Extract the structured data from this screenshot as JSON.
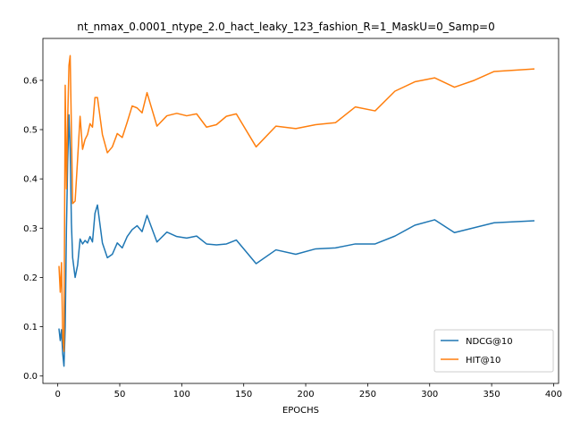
{
  "chart_data": {
    "type": "line",
    "title": "nt_nmax_0.0001_ntype_2.0_hact_leaky_123_fashion_R=1_MaskU=0_Samp=0",
    "xlabel": "EPOCHS",
    "ylabel": "",
    "xlim": [
      -12,
      404
    ],
    "ylim": [
      -0.015,
      0.685
    ],
    "xticks": [
      0,
      50,
      100,
      150,
      200,
      250,
      300,
      350,
      400
    ],
    "yticks": [
      0.0,
      0.1,
      0.2,
      0.3,
      0.4,
      0.5,
      0.6
    ],
    "legend_position": "lower right",
    "series": [
      {
        "name": "NDCG@10",
        "color": "#1f77b4",
        "x": [
          1,
          2,
          3,
          4,
          5,
          6,
          7,
          8,
          9,
          10,
          11,
          12,
          14,
          16,
          18,
          20,
          22,
          24,
          26,
          28,
          30,
          32,
          36,
          40,
          44,
          48,
          52,
          56,
          60,
          64,
          68,
          72,
          80,
          88,
          96,
          104,
          112,
          120,
          128,
          136,
          144,
          160,
          176,
          192,
          208,
          224,
          240,
          256,
          272,
          288,
          304,
          320,
          336,
          352,
          384
        ],
        "y": [
          0.095,
          0.072,
          0.094,
          0.045,
          0.02,
          0.1,
          0.3,
          0.435,
          0.53,
          0.46,
          0.31,
          0.24,
          0.2,
          0.225,
          0.278,
          0.268,
          0.275,
          0.27,
          0.283,
          0.272,
          0.33,
          0.347,
          0.27,
          0.24,
          0.247,
          0.27,
          0.26,
          0.283,
          0.297,
          0.305,
          0.293,
          0.326,
          0.272,
          0.292,
          0.283,
          0.28,
          0.284,
          0.268,
          0.266,
          0.268,
          0.276,
          0.228,
          0.256,
          0.247,
          0.258,
          0.26,
          0.268,
          0.268,
          0.284,
          0.306,
          0.317,
          0.291,
          0.301,
          0.311,
          0.315
        ]
      },
      {
        "name": "HIT@10",
        "color": "#ff7f0e",
        "x": [
          1,
          2,
          3,
          4,
          5,
          6,
          7,
          8,
          9,
          10,
          11,
          12,
          14,
          16,
          18,
          20,
          22,
          24,
          26,
          28,
          30,
          32,
          36,
          40,
          44,
          48,
          52,
          56,
          60,
          64,
          68,
          72,
          80,
          88,
          96,
          104,
          112,
          120,
          128,
          136,
          144,
          160,
          176,
          192,
          208,
          224,
          240,
          256,
          272,
          288,
          304,
          320,
          336,
          352,
          384
        ],
        "y": [
          0.222,
          0.17,
          0.23,
          0.08,
          0.05,
          0.59,
          0.38,
          0.52,
          0.63,
          0.65,
          0.5,
          0.35,
          0.355,
          0.44,
          0.527,
          0.46,
          0.48,
          0.49,
          0.512,
          0.505,
          0.565,
          0.565,
          0.49,
          0.453,
          0.465,
          0.492,
          0.484,
          0.515,
          0.548,
          0.544,
          0.534,
          0.575,
          0.507,
          0.528,
          0.533,
          0.528,
          0.532,
          0.505,
          0.51,
          0.527,
          0.532,
          0.465,
          0.507,
          0.502,
          0.51,
          0.514,
          0.546,
          0.538,
          0.578,
          0.597,
          0.605,
          0.586,
          0.6,
          0.618,
          0.623
        ]
      }
    ]
  }
}
